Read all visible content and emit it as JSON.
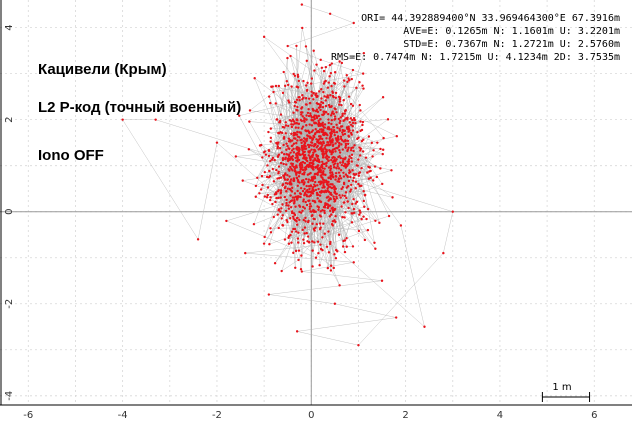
{
  "chart_data": {
    "type": "scatter",
    "title": "",
    "xlabel": "",
    "ylabel": "",
    "xlim": [
      -6.6,
      6.8
    ],
    "ylim": [
      -4.2,
      4.6
    ],
    "xticks": [
      -6,
      -4,
      -2,
      0,
      2,
      4,
      6
    ],
    "yticks": [
      -4,
      -2,
      0,
      2,
      4
    ],
    "grid": true,
    "marker_color": "#e8141c",
    "line_color": "#b0b0b0",
    "background": "#ffffff",
    "stats": [
      "ORI= 44.392889400°N   33.969464300°E 67.3916m",
      "AVE=E: 0.1265m N: 1.1601m U: 3.2201m",
      "STD=E: 0.7367m N: 1.2721m U: 2.5760m",
      "RMS=E: 0.7474m N: 1.7215m U: 4.1234m 2D: 3.7535m"
    ],
    "annotations": [
      "Кацивели (Крым)",
      "L2 P-код (точный  военный)",
      "Iono OFF"
    ],
    "scale_bar": {
      "label": "1 m",
      "length": 1
    },
    "series": [
      {
        "values_note": "",
        "points": [
          [
            -0.2,
            4.5
          ],
          [
            0.4,
            4.3
          ],
          [
            0.9,
            4.1
          ],
          [
            -0.5,
            3.6
          ],
          [
            0.2,
            3.3
          ],
          [
            1.1,
            3.0
          ],
          [
            -0.8,
            2.6
          ],
          [
            -1.3,
            2.2
          ],
          [
            -0.1,
            2.0
          ],
          [
            0.6,
            1.8
          ],
          [
            1.4,
            1.5
          ],
          [
            -1.6,
            1.2
          ],
          [
            -0.4,
            1.0
          ],
          [
            0.3,
            0.8
          ],
          [
            1.0,
            0.6
          ],
          [
            -1.1,
            0.4
          ],
          [
            0.7,
            0.2
          ],
          [
            0.0,
            0.0
          ],
          [
            -0.6,
            -0.3
          ],
          [
            1.2,
            -0.4
          ],
          [
            0.4,
            -0.7
          ],
          [
            -1.4,
            -0.9
          ],
          [
            0.9,
            -1.1
          ],
          [
            -0.2,
            -1.3
          ],
          [
            1.5,
            -1.5
          ],
          [
            -0.9,
            -1.8
          ],
          [
            0.5,
            -2.0
          ],
          [
            1.8,
            -2.3
          ],
          [
            -0.3,
            -2.6
          ],
          [
            1.0,
            -2.9
          ],
          [
            2.8,
            -0.9
          ],
          [
            3.0,
            0.0
          ],
          [
            -3.3,
            2.0
          ],
          [
            -4.0,
            2.0
          ],
          [
            -2.4,
            -0.6
          ],
          [
            -2.0,
            1.5
          ],
          [
            2.4,
            -2.5
          ],
          [
            1.9,
            -0.3
          ],
          [
            -1.0,
            3.8
          ],
          [
            0.8,
            2.5
          ],
          [
            -0.7,
            1.5
          ],
          [
            1.7,
            0.9
          ],
          [
            -1.8,
            -0.2
          ],
          [
            0.1,
            -1.0
          ],
          [
            1.3,
            1.2
          ],
          [
            -0.5,
            0.5
          ],
          [
            0.6,
            -1.6
          ],
          [
            -1.2,
            2.9
          ]
        ]
      }
    ]
  }
}
